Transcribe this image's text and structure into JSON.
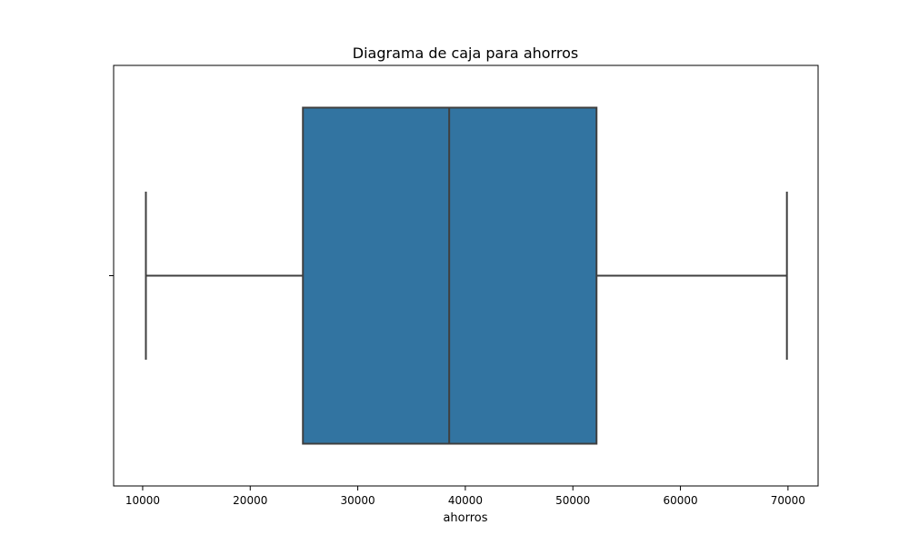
{
  "chart_data": {
    "type": "box",
    "title": "Diagrama de caja para ahorros",
    "xlabel": "ahorros",
    "ylabel": "",
    "xlim": [
      7300,
      72800
    ],
    "xticks": [
      10000,
      20000,
      30000,
      40000,
      50000,
      60000,
      70000
    ],
    "series": [
      {
        "whisker_low": 10300,
        "q1": 24900,
        "median": 38500,
        "q3": 52200,
        "whisker_high": 69900
      }
    ],
    "grid": false,
    "legend": "none",
    "colors": {
      "box_fill": "#3274a1",
      "line": "#3f3f3f",
      "axes": "#000000",
      "background": "#ffffff"
    }
  }
}
